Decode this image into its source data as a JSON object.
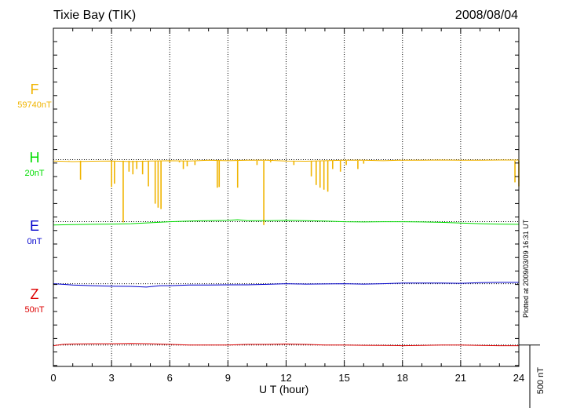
{
  "header": {
    "station": "Tixie Bay (TIK)",
    "date": "2008/08/04"
  },
  "footer": {
    "plotted_note": "Plotted at 2009/03/09 16:31 UT"
  },
  "chart_data": {
    "type": "line",
    "title": "Tixie Bay (TIK)",
    "date": "2008/08/04",
    "xlabel": "U T (hour)",
    "xlim": [
      0,
      24
    ],
    "xticks": [
      0,
      3,
      6,
      9,
      12,
      15,
      18,
      21,
      24
    ],
    "grid": "vertical dotted lines every 3 hours; dotted baseline per component",
    "scale_bar_label": "500 nT",
    "scale_bar_nT": 500,
    "series": [
      {
        "name": "F",
        "baseline_label": "59740nT",
        "color": "#f0b400",
        "offset_nT": 1050,
        "points": [
          [
            0,
            -10
          ],
          [
            1,
            -15
          ],
          [
            2,
            -12
          ],
          [
            3,
            -10
          ],
          [
            4,
            -14
          ],
          [
            5,
            -10
          ],
          [
            6,
            -8
          ],
          [
            7,
            -10
          ],
          [
            8,
            -5
          ],
          [
            9,
            -8
          ],
          [
            10,
            -5
          ],
          [
            11,
            -5
          ],
          [
            12,
            -10
          ],
          [
            13,
            -12
          ],
          [
            14,
            -8
          ],
          [
            15,
            -5
          ],
          [
            16,
            -5
          ],
          [
            17,
            -8
          ],
          [
            18,
            -4
          ],
          [
            19,
            -5
          ],
          [
            20,
            -3
          ],
          [
            21,
            -5
          ],
          [
            22,
            -5
          ],
          [
            23,
            -3
          ],
          [
            24,
            -3
          ]
        ],
        "spikes": [
          [
            0.8,
            -10
          ],
          [
            1.4,
            -150
          ],
          [
            3.0,
            -205
          ],
          [
            3.15,
            -180
          ],
          [
            3.6,
            -470
          ],
          [
            3.9,
            -90
          ],
          [
            4.1,
            -110
          ],
          [
            4.3,
            -70
          ],
          [
            4.6,
            -110
          ],
          [
            4.9,
            -200
          ],
          [
            5.25,
            -330
          ],
          [
            5.4,
            -360
          ],
          [
            5.55,
            -370
          ],
          [
            6.0,
            -20
          ],
          [
            6.5,
            -20
          ],
          [
            6.7,
            -70
          ],
          [
            6.9,
            -50
          ],
          [
            7.3,
            -40
          ],
          [
            8.45,
            -210
          ],
          [
            8.55,
            -205
          ],
          [
            9.5,
            -210
          ],
          [
            10.5,
            -40
          ],
          [
            10.85,
            -490
          ],
          [
            11.2,
            -20
          ],
          [
            12.4,
            -40
          ],
          [
            13.3,
            -125
          ],
          [
            13.55,
            -190
          ],
          [
            13.75,
            -210
          ],
          [
            13.95,
            -225
          ],
          [
            14.15,
            -240
          ],
          [
            14.4,
            -70
          ],
          [
            14.8,
            -90
          ],
          [
            15.1,
            -40
          ],
          [
            15.7,
            -70
          ],
          [
            16.0,
            -30
          ],
          [
            23.8,
            -170
          ],
          [
            24.0,
            -200
          ]
        ]
      },
      {
        "name": "H",
        "baseline_label": "20nT",
        "color": "#00dd00",
        "offset_nT": 585,
        "points": [
          [
            0,
            -25
          ],
          [
            1,
            -22
          ],
          [
            2,
            -20
          ],
          [
            3,
            -18
          ],
          [
            4,
            -15
          ],
          [
            5,
            -8
          ],
          [
            6,
            0
          ],
          [
            7,
            5
          ],
          [
            8,
            8
          ],
          [
            9,
            10
          ],
          [
            9.5,
            15
          ],
          [
            10,
            8
          ],
          [
            11,
            8
          ],
          [
            12,
            10
          ],
          [
            13,
            8
          ],
          [
            14,
            5
          ],
          [
            15,
            0
          ],
          [
            16,
            -2
          ],
          [
            17,
            0
          ],
          [
            18,
            0
          ],
          [
            19,
            -2
          ],
          [
            20,
            -5
          ],
          [
            21,
            -10
          ],
          [
            22,
            -15
          ],
          [
            23,
            -18
          ],
          [
            24,
            -20
          ]
        ]
      },
      {
        "name": "E",
        "baseline_label": "0nT",
        "color": "#0000cc",
        "offset_nT": 120,
        "points": [
          [
            0,
            0
          ],
          [
            0.5,
            -5
          ],
          [
            1,
            -10
          ],
          [
            2,
            -15
          ],
          [
            3,
            -18
          ],
          [
            4,
            -20
          ],
          [
            4.8,
            -25
          ],
          [
            5.5,
            -15
          ],
          [
            6,
            -15
          ],
          [
            7,
            -10
          ],
          [
            8,
            -10
          ],
          [
            9,
            -8
          ],
          [
            10,
            -8
          ],
          [
            11,
            -5
          ],
          [
            12,
            0
          ],
          [
            13,
            -3
          ],
          [
            14,
            -2
          ],
          [
            15,
            0
          ],
          [
            16,
            -3
          ],
          [
            17,
            0
          ],
          [
            18,
            5
          ],
          [
            19,
            5
          ],
          [
            20,
            5
          ],
          [
            21,
            3
          ],
          [
            22,
            8
          ],
          [
            23,
            10
          ],
          [
            24,
            10
          ]
        ]
      },
      {
        "name": "Z",
        "baseline_label": "50nT",
        "color": "#dd0000",
        "offset_nT": -340,
        "points": [
          [
            0,
            -5
          ],
          [
            0.5,
            5
          ],
          [
            1,
            8
          ],
          [
            2,
            10
          ],
          [
            3,
            10
          ],
          [
            4,
            12
          ],
          [
            5,
            10
          ],
          [
            6,
            5
          ],
          [
            7,
            0
          ],
          [
            8,
            0
          ],
          [
            9,
            0
          ],
          [
            10,
            5
          ],
          [
            11,
            5
          ],
          [
            12,
            8
          ],
          [
            13,
            5
          ],
          [
            14,
            0
          ],
          [
            15,
            0
          ],
          [
            16,
            -2
          ],
          [
            17,
            -3
          ],
          [
            18,
            -5
          ],
          [
            19,
            -3
          ],
          [
            20,
            0
          ],
          [
            21,
            0
          ],
          [
            22,
            -3
          ],
          [
            23,
            -5
          ],
          [
            24,
            -5
          ]
        ]
      }
    ]
  }
}
